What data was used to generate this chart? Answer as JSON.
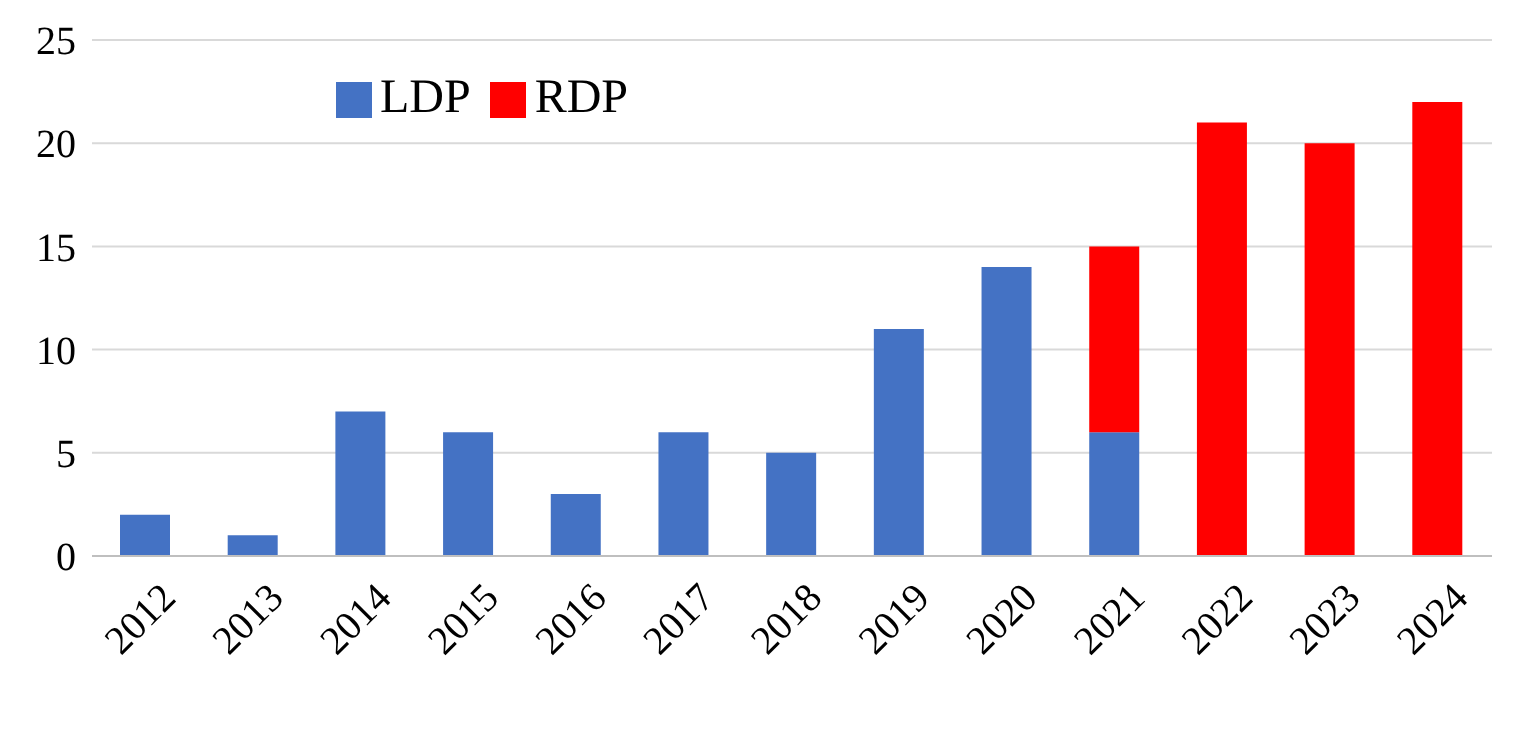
{
  "chart_data": {
    "type": "bar",
    "stacked": true,
    "categories": [
      "2012",
      "2013",
      "2014",
      "2015",
      "2016",
      "2017",
      "2018",
      "2019",
      "2020",
      "2021",
      "2022",
      "2023",
      "2024"
    ],
    "series": [
      {
        "name": "LDP",
        "color": "#4472c4",
        "values": [
          2,
          1,
          7,
          6,
          3,
          6,
          5,
          11,
          14,
          6,
          null,
          null,
          null
        ]
      },
      {
        "name": "RDP",
        "color": "#ff0000",
        "values": [
          null,
          null,
          null,
          null,
          null,
          null,
          null,
          null,
          null,
          9,
          21,
          20,
          22
        ]
      }
    ],
    "ylim": [
      0,
      25
    ],
    "yticks": [
      0,
      5,
      10,
      15,
      20,
      25
    ],
    "grid": "y",
    "legend": "top left"
  }
}
